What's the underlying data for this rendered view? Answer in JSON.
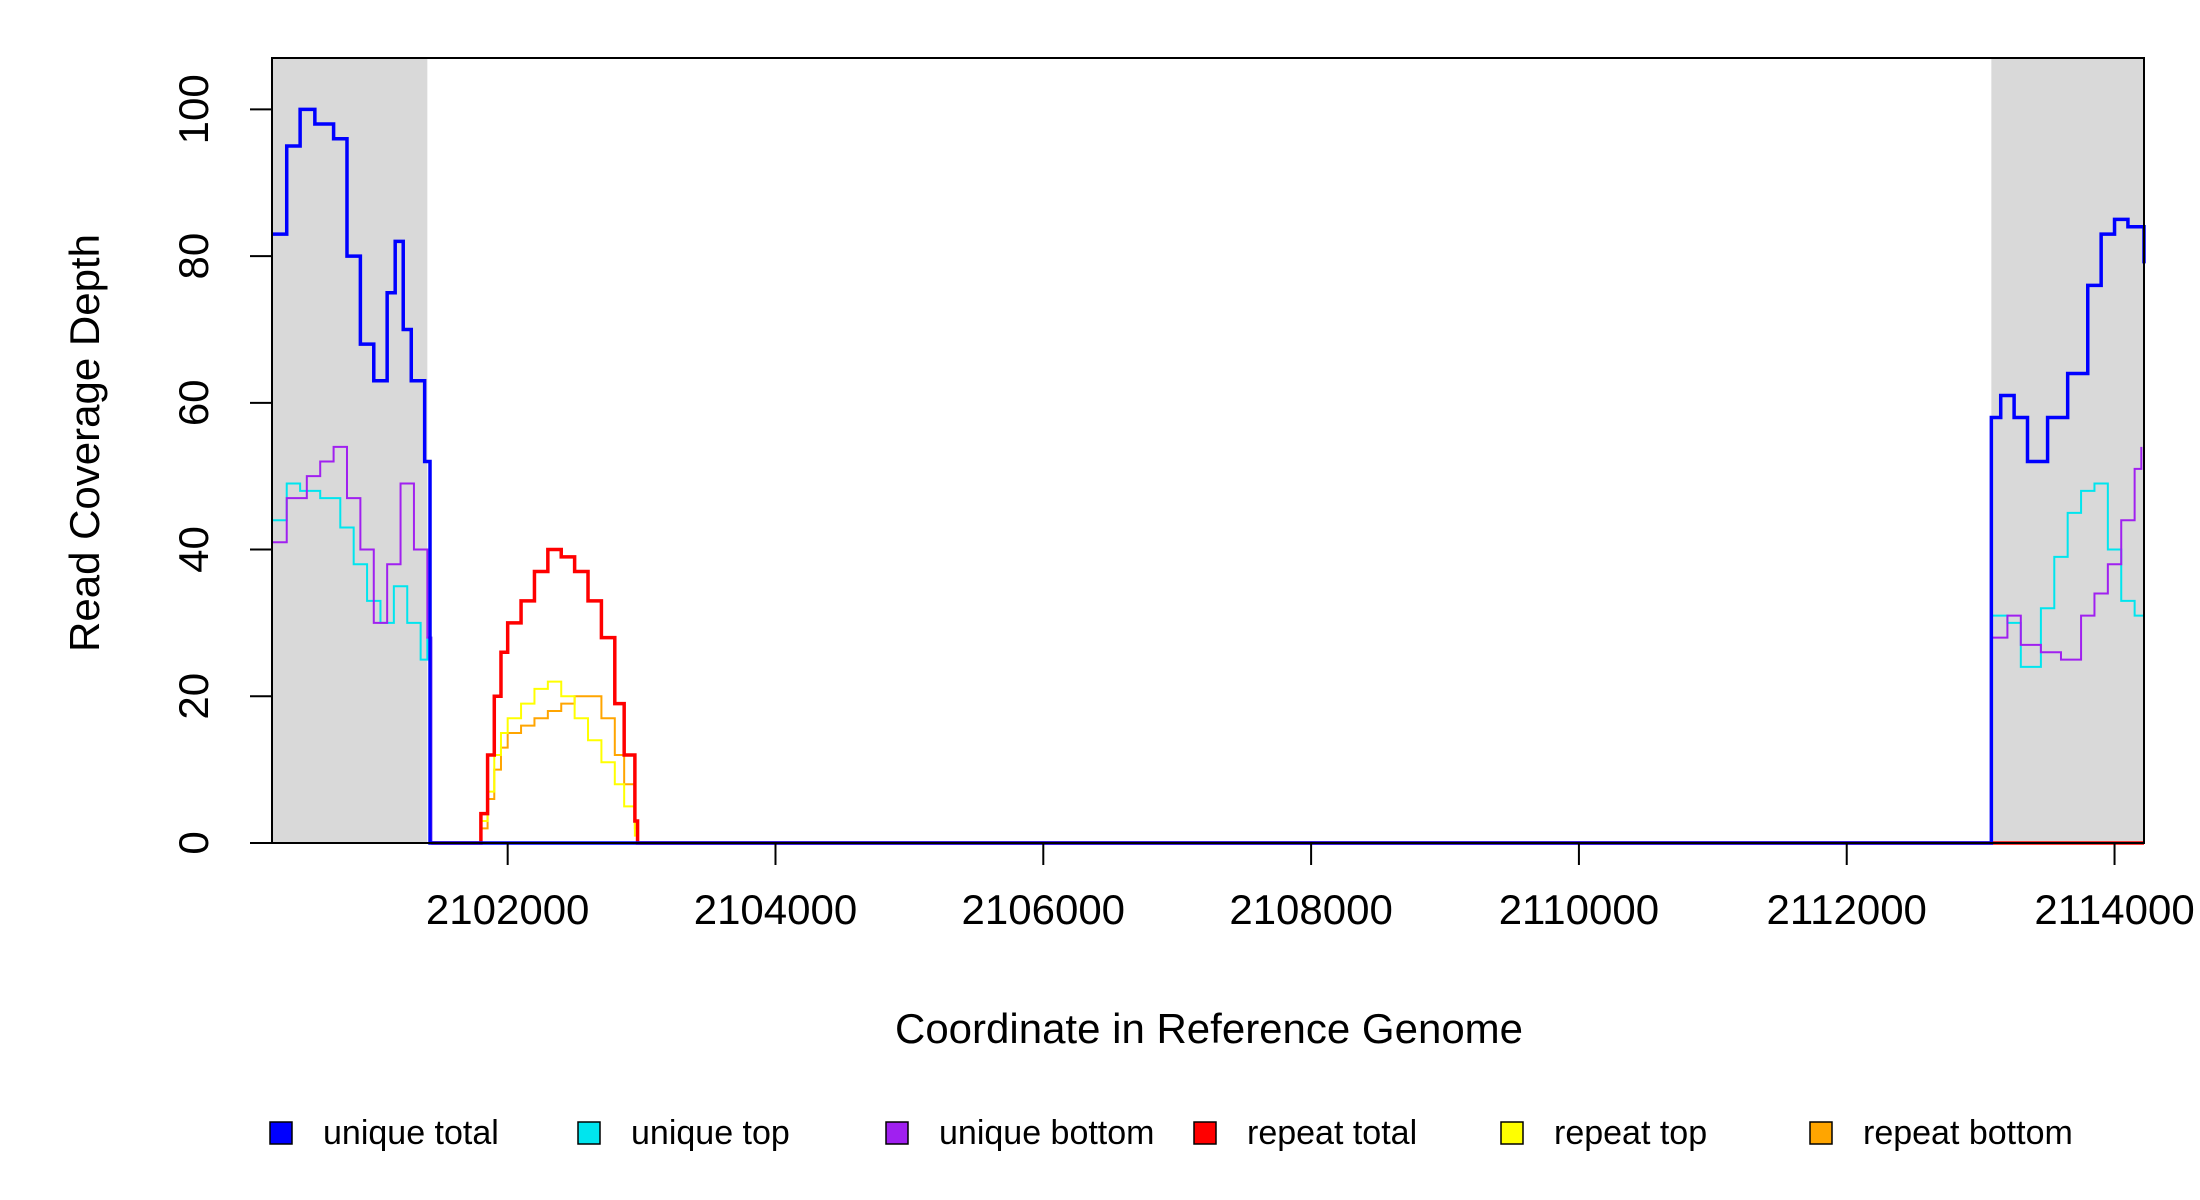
{
  "chart_data": {
    "type": "line",
    "title": "",
    "xlabel": "Coordinate in Reference Genome",
    "ylabel": "Read Coverage Depth",
    "xlim": [
      2100240,
      2114220
    ],
    "ylim": [
      0,
      107
    ],
    "x_ticks": [
      2102000,
      2104000,
      2106000,
      2108000,
      2110000,
      2112000,
      2114000
    ],
    "x_tick_labels": [
      "2102000",
      "2104000",
      "2106000",
      "2108000",
      "2110000",
      "2112000",
      "2114000"
    ],
    "y_ticks": [
      0,
      20,
      40,
      60,
      80,
      100
    ],
    "y_tick_labels": [
      "0",
      "20",
      "40",
      "60",
      "80",
      "100"
    ],
    "grid": false,
    "legend_position": "bottom",
    "shaded_regions": [
      {
        "x_start": 2100240,
        "x_end": 2101400,
        "color": "#d9d9d9"
      },
      {
        "x_start": 2113080,
        "x_end": 2114220,
        "color": "#d9d9d9"
      }
    ],
    "series": [
      {
        "name": "unique total",
        "color": "#0000ff",
        "style": "step",
        "x": [
          2100240,
          2100350,
          2100450,
          2100560,
          2100700,
          2100800,
          2100900,
          2101000,
          2101100,
          2101160,
          2101220,
          2101280,
          2101380,
          2101420,
          2101430,
          2113070,
          2113080,
          2113150,
          2113250,
          2113350,
          2113500,
          2113650,
          2113800,
          2113900,
          2114000,
          2114100,
          2114220
        ],
        "y": [
          83,
          95,
          100,
          98,
          96,
          80,
          68,
          63,
          75,
          82,
          70,
          63,
          52,
          0,
          0,
          0,
          58,
          61,
          58,
          52,
          58,
          64,
          76,
          83,
          85,
          84,
          79
        ]
      },
      {
        "name": "unique top",
        "color": "#00e5ee",
        "style": "step",
        "x": [
          2100240,
          2100350,
          2100450,
          2100600,
          2100750,
          2100850,
          2100950,
          2101050,
          2101150,
          2101250,
          2101350,
          2101400,
          2101430,
          2113070,
          2113080,
          2113200,
          2113300,
          2113450,
          2113550,
          2113650,
          2113750,
          2113850,
          2113950,
          2114050,
          2114150,
          2114220
        ],
        "y": [
          44,
          49,
          48,
          47,
          43,
          38,
          33,
          30,
          35,
          30,
          25,
          28,
          0,
          0,
          31,
          30,
          24,
          32,
          39,
          45,
          48,
          49,
          40,
          33,
          31,
          30
        ],
        "thin": true
      },
      {
        "name": "unique bottom",
        "color": "#a020f0",
        "style": "step",
        "x": [
          2100240,
          2100350,
          2100500,
          2100600,
          2100700,
          2100800,
          2100900,
          2101000,
          2101100,
          2101200,
          2101300,
          2101400,
          2101430,
          2113070,
          2113080,
          2113200,
          2113300,
          2113450,
          2113600,
          2113750,
          2113850,
          2113950,
          2114050,
          2114150,
          2114200
        ],
        "y": [
          41,
          47,
          50,
          52,
          54,
          47,
          40,
          30,
          38,
          49,
          40,
          28,
          0,
          0,
          28,
          31,
          27,
          26,
          25,
          31,
          34,
          38,
          44,
          51,
          54
        ],
        "thin": true
      },
      {
        "name": "repeat total",
        "color": "#ff0000",
        "style": "step",
        "x": [
          2101430,
          2101750,
          2101800,
          2101850,
          2101900,
          2101950,
          2102000,
          2102100,
          2102200,
          2102300,
          2102400,
          2102500,
          2102600,
          2102700,
          2102800,
          2102870,
          2102950,
          2102970,
          2114220
        ],
        "y": [
          0,
          0,
          4,
          12,
          20,
          26,
          30,
          33,
          37,
          40,
          39,
          37,
          33,
          28,
          19,
          12,
          3,
          0,
          0
        ]
      },
      {
        "name": "repeat top",
        "color": "#ffff00",
        "style": "step",
        "x": [
          2101430,
          2101750,
          2101800,
          2101850,
          2101900,
          2101950,
          2102000,
          2102100,
          2102200,
          2102300,
          2102400,
          2102500,
          2102600,
          2102700,
          2102800,
          2102870,
          2102950,
          2102970,
          2114220
        ],
        "y": [
          0,
          0,
          3,
          7,
          12,
          15,
          17,
          19,
          21,
          22,
          20,
          17,
          14,
          11,
          8,
          5,
          1,
          0,
          0
        ],
        "thin": true
      },
      {
        "name": "repeat bottom",
        "color": "#ffa500",
        "style": "step",
        "x": [
          2101430,
          2101750,
          2101800,
          2101850,
          2101900,
          2101950,
          2102000,
          2102100,
          2102200,
          2102300,
          2102400,
          2102500,
          2102600,
          2102700,
          2102800,
          2102870,
          2102950,
          2102970,
          2114220
        ],
        "y": [
          0,
          0,
          2,
          6,
          10,
          13,
          15,
          16,
          17,
          18,
          19,
          20,
          20,
          17,
          12,
          8,
          2,
          0,
          0
        ],
        "thin": true
      }
    ]
  }
}
